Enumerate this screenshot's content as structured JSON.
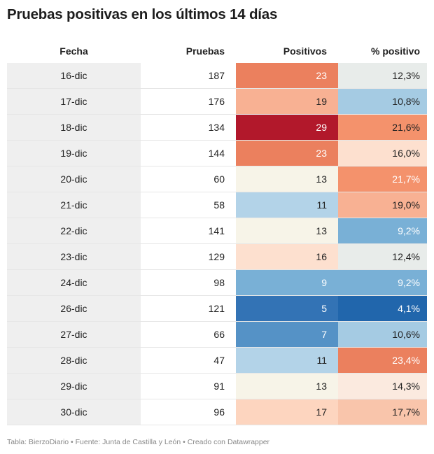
{
  "title": "Pruebas positivas en los últimos 14 días",
  "footer": "Tabla: BierzoDiario • Fuente: Junta de Castilla y León • Creado con Datawrapper",
  "chart_data": {
    "type": "table",
    "columns": [
      "Fecha",
      "Pruebas",
      "Positivos",
      "% positivo"
    ],
    "rows": [
      {
        "fecha": "16-dic",
        "pruebas": "187",
        "positivos": "23",
        "pct": "12,3%",
        "pos_bg": "#eb805e",
        "pos_fg": "#ffffff",
        "pct_bg": "#e8ecea",
        "pct_fg": "#222222"
      },
      {
        "fecha": "17-dic",
        "pruebas": "176",
        "positivos": "19",
        "pct": "10,8%",
        "pos_bg": "#f8b193",
        "pos_fg": "#222222",
        "pct_bg": "#a5cbe3",
        "pct_fg": "#222222"
      },
      {
        "fecha": "18-dic",
        "pruebas": "134",
        "positivos": "29",
        "pct": "21,6%",
        "pos_bg": "#b2182b",
        "pos_fg": "#ffffff",
        "pct_bg": "#f4926c",
        "pct_fg": "#222222"
      },
      {
        "fecha": "19-dic",
        "pruebas": "144",
        "positivos": "23",
        "pct": "16,0%",
        "pos_bg": "#eb805e",
        "pos_fg": "#ffffff",
        "pct_bg": "#fde0cf",
        "pct_fg": "#222222"
      },
      {
        "fecha": "20-dic",
        "pruebas": "60",
        "positivos": "13",
        "pct": "21,7%",
        "pos_bg": "#f7f4e8",
        "pos_fg": "#222222",
        "pct_bg": "#f4926c",
        "pct_fg": "#ffffff"
      },
      {
        "fecha": "21-dic",
        "pruebas": "58",
        "positivos": "11",
        "pct": "19,0%",
        "pos_bg": "#b3d3e8",
        "pos_fg": "#222222",
        "pct_bg": "#f8b193",
        "pct_fg": "#222222"
      },
      {
        "fecha": "22-dic",
        "pruebas": "141",
        "positivos": "13",
        "pct": "9,2%",
        "pos_bg": "#f7f4e8",
        "pos_fg": "#222222",
        "pct_bg": "#79b0d6",
        "pct_fg": "#ffffff"
      },
      {
        "fecha": "23-dic",
        "pruebas": "129",
        "positivos": "16",
        "pct": "12,4%",
        "pos_bg": "#fde0cf",
        "pos_fg": "#222222",
        "pct_bg": "#e8ecea",
        "pct_fg": "#222222"
      },
      {
        "fecha": "24-dic",
        "pruebas": "98",
        "positivos": "9",
        "pct": "9,2%",
        "pos_bg": "#79b0d6",
        "pos_fg": "#ffffff",
        "pct_bg": "#79b0d6",
        "pct_fg": "#ffffff"
      },
      {
        "fecha": "26-dic",
        "pruebas": "121",
        "positivos": "5",
        "pct": "4,1%",
        "pos_bg": "#3373b5",
        "pos_fg": "#ffffff",
        "pct_bg": "#2166ac",
        "pct_fg": "#ffffff"
      },
      {
        "fecha": "27-dic",
        "pruebas": "66",
        "positivos": "7",
        "pct": "10,6%",
        "pos_bg": "#5592c6",
        "pos_fg": "#ffffff",
        "pct_bg": "#a5cbe3",
        "pct_fg": "#222222"
      },
      {
        "fecha": "28-dic",
        "pruebas": "47",
        "positivos": "11",
        "pct": "23,4%",
        "pos_bg": "#b3d3e8",
        "pos_fg": "#222222",
        "pct_bg": "#eb805e",
        "pct_fg": "#ffffff"
      },
      {
        "fecha": "29-dic",
        "pruebas": "91",
        "positivos": "13",
        "pct": "14,3%",
        "pos_bg": "#f7f4e8",
        "pos_fg": "#222222",
        "pct_bg": "#fbeadf",
        "pct_fg": "#222222"
      },
      {
        "fecha": "30-dic",
        "pruebas": "96",
        "positivos": "17",
        "pct": "17,7%",
        "pos_bg": "#fdd5bf",
        "pos_fg": "#222222",
        "pct_bg": "#f9c5ab",
        "pct_fg": "#222222"
      }
    ]
  }
}
